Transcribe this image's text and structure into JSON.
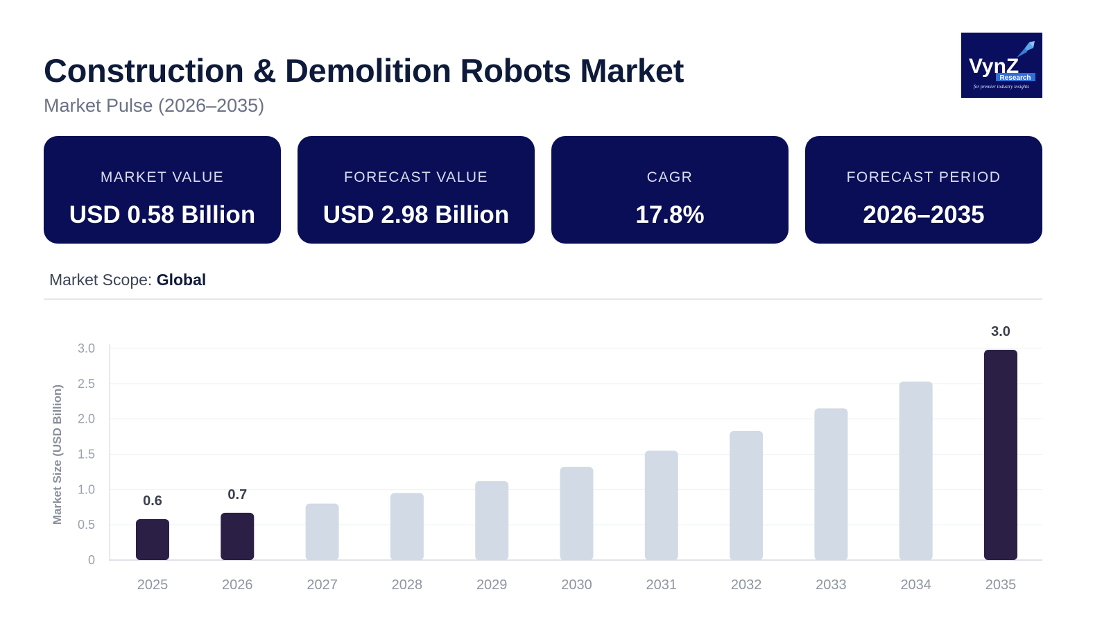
{
  "header": {
    "title": "Construction & Demolition Robots Market",
    "subtitle": "Market Pulse (2026–2035)"
  },
  "logo": {
    "text": "VynZ",
    "tag": "Research",
    "tagline": "for premier industry insights",
    "bg_color": "#0a0e5e"
  },
  "cards": [
    {
      "label": "MARKET VALUE",
      "value": "USD 0.58 Billion"
    },
    {
      "label": "FORECAST VALUE",
      "value": "USD 2.98 Billion"
    },
    {
      "label": "CAGR",
      "value": "17.8%"
    },
    {
      "label": "FORECAST PERIOD",
      "value": "2026–2035"
    }
  ],
  "scope": {
    "label": "Market Scope:",
    "value": "Global"
  },
  "colors": {
    "card_bg": "#0a0e56",
    "highlight_bar": "#2c1f46",
    "regular_bar": "#d2dae5"
  },
  "chart_data": {
    "type": "bar",
    "ylabel": "Market Size (USD Billion)",
    "xlabel": "",
    "ylim": [
      0,
      3.0
    ],
    "yticks": [
      "0",
      "0.5",
      "1.0",
      "1.5",
      "2.0",
      "2.5",
      "3.0"
    ],
    "grid": true,
    "categories": [
      "2025",
      "2026",
      "2027",
      "2028",
      "2029",
      "2030",
      "2031",
      "2032",
      "2033",
      "2034",
      "2035"
    ],
    "values": [
      0.58,
      0.67,
      0.8,
      0.95,
      1.12,
      1.32,
      1.55,
      1.83,
      2.15,
      2.53,
      2.98
    ],
    "highlighted": [
      true,
      true,
      false,
      false,
      false,
      false,
      false,
      false,
      false,
      false,
      true
    ],
    "data_labels": [
      "0.6",
      "0.7",
      "",
      "",
      "",
      "",
      "",
      "",
      "",
      "",
      "3.0"
    ]
  }
}
